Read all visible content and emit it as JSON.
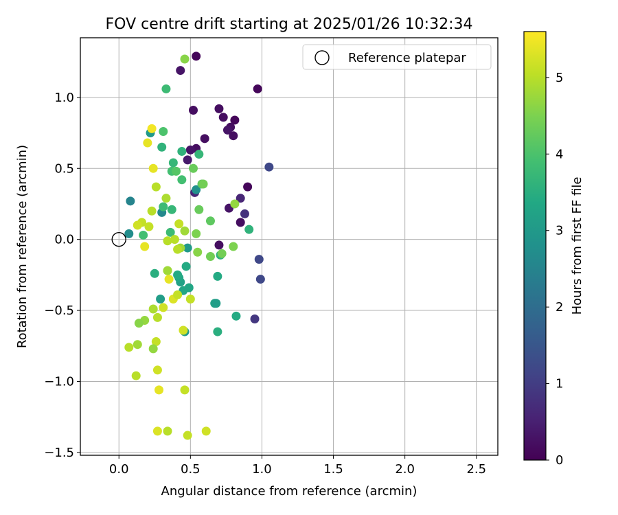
{
  "chart_data": {
    "type": "scatter",
    "title": "FOV centre drift starting at 2025/01/26 10:32:34",
    "xlabel": "Angular distance from reference (arcmin)",
    "ylabel": "Rotation from reference (arcmin)",
    "xlim": [
      -0.27,
      2.65
    ],
    "ylim": [
      -1.52,
      1.42
    ],
    "xticks": [
      0.0,
      0.5,
      1.0,
      1.5,
      2.0,
      2.5
    ],
    "xtick_labels": [
      "0.0",
      "0.5",
      "1.0",
      "1.5",
      "2.0",
      "2.5"
    ],
    "yticks": [
      -1.5,
      -1.0,
      -0.5,
      0.0,
      0.5,
      1.0
    ],
    "ytick_labels": [
      "−1.5",
      "−1.0",
      "−0.5",
      "0.0",
      "0.5",
      "1.0"
    ],
    "grid": true,
    "legend": {
      "placement": "top-right",
      "label": "Reference platepar"
    },
    "reference_point": {
      "x": 0.0,
      "y": 0.0
    },
    "colorbar": {
      "label": "Hours from first FF file",
      "colormap": "viridis",
      "range": [
        0,
        5.6
      ],
      "ticks": [
        0,
        1,
        2,
        3,
        4,
        5
      ],
      "tick_labels": [
        "0",
        "1",
        "2",
        "3",
        "4",
        "5"
      ]
    },
    "points": [
      {
        "x": 0.54,
        "y": 1.29,
        "h": 0.1
      },
      {
        "x": 0.43,
        "y": 1.19,
        "h": 0.3
      },
      {
        "x": 0.97,
        "y": 1.06,
        "h": 0.1
      },
      {
        "x": 0.52,
        "y": 0.91,
        "h": 0.2
      },
      {
        "x": 0.7,
        "y": 0.92,
        "h": 0.2
      },
      {
        "x": 0.73,
        "y": 0.86,
        "h": 0.2
      },
      {
        "x": 0.81,
        "y": 0.84,
        "h": 0.1
      },
      {
        "x": 0.78,
        "y": 0.79,
        "h": 0.2
      },
      {
        "x": 0.76,
        "y": 0.77,
        "h": 0.3
      },
      {
        "x": 0.8,
        "y": 0.73,
        "h": 0.2
      },
      {
        "x": 0.6,
        "y": 0.71,
        "h": 0.2
      },
      {
        "x": 0.54,
        "y": 0.64,
        "h": 0.2
      },
      {
        "x": 0.5,
        "y": 0.63,
        "h": 0.3
      },
      {
        "x": 0.48,
        "y": 0.56,
        "h": 0.4
      },
      {
        "x": 1.05,
        "y": 0.51,
        "h": 1.2
      },
      {
        "x": 0.9,
        "y": 0.37,
        "h": 0.1
      },
      {
        "x": 0.53,
        "y": 0.33,
        "h": 0.6
      },
      {
        "x": 0.85,
        "y": 0.29,
        "h": 0.6
      },
      {
        "x": 0.77,
        "y": 0.22,
        "h": 0.3
      },
      {
        "x": 0.88,
        "y": 0.18,
        "h": 0.8
      },
      {
        "x": 0.85,
        "y": 0.12,
        "h": 0.2
      },
      {
        "x": 0.7,
        "y": -0.04,
        "h": 0.2
      },
      {
        "x": 0.98,
        "y": -0.14,
        "h": 1.2
      },
      {
        "x": 0.99,
        "y": -0.28,
        "h": 1.2
      },
      {
        "x": 0.95,
        "y": -0.56,
        "h": 0.9
      },
      {
        "x": 0.08,
        "y": 0.27,
        "h": 2.5
      },
      {
        "x": 0.07,
        "y": 0.04,
        "h": 2.7
      },
      {
        "x": 0.3,
        "y": 0.19,
        "h": 2.6
      },
      {
        "x": 0.54,
        "y": 0.35,
        "h": 2.8
      },
      {
        "x": 0.22,
        "y": 0.75,
        "h": 3.0
      },
      {
        "x": 0.48,
        "y": -0.06,
        "h": 3.0
      },
      {
        "x": 0.46,
        "y": -0.65,
        "h": 3.0
      },
      {
        "x": 0.67,
        "y": -0.45,
        "h": 3.2
      },
      {
        "x": 0.68,
        "y": -0.45,
        "h": 3.1
      },
      {
        "x": 0.29,
        "y": -0.42,
        "h": 3.1
      },
      {
        "x": 0.45,
        "y": -0.36,
        "h": 3.3
      },
      {
        "x": 0.49,
        "y": -0.34,
        "h": 3.3
      },
      {
        "x": 0.43,
        "y": -0.3,
        "h": 3.2
      },
      {
        "x": 0.42,
        "y": -0.27,
        "h": 3.3
      },
      {
        "x": 0.41,
        "y": -0.25,
        "h": 3.4
      },
      {
        "x": 0.47,
        "y": -0.19,
        "h": 3.4
      },
      {
        "x": 0.69,
        "y": -0.26,
        "h": 3.4
      },
      {
        "x": 0.82,
        "y": -0.54,
        "h": 3.4
      },
      {
        "x": 0.69,
        "y": -0.65,
        "h": 3.5
      },
      {
        "x": 0.25,
        "y": -0.24,
        "h": 3.5
      },
      {
        "x": 0.71,
        "y": -0.11,
        "h": 3.6
      },
      {
        "x": 0.91,
        "y": 0.07,
        "h": 3.6
      },
      {
        "x": 0.3,
        "y": 0.65,
        "h": 3.6
      },
      {
        "x": 0.44,
        "y": 0.62,
        "h": 3.6
      },
      {
        "x": 0.56,
        "y": 0.6,
        "h": 3.7
      },
      {
        "x": 0.38,
        "y": 0.54,
        "h": 3.7
      },
      {
        "x": 0.37,
        "y": 0.48,
        "h": 3.9
      },
      {
        "x": 0.44,
        "y": 0.42,
        "h": 3.9
      },
      {
        "x": 0.31,
        "y": 0.23,
        "h": 3.8
      },
      {
        "x": 0.37,
        "y": 0.21,
        "h": 3.7
      },
      {
        "x": 0.17,
        "y": 0.03,
        "h": 3.9
      },
      {
        "x": 0.36,
        "y": 0.05,
        "h": 3.8
      },
      {
        "x": 0.33,
        "y": 1.06,
        "h": 3.8
      },
      {
        "x": 0.31,
        "y": 0.76,
        "h": 4.0
      },
      {
        "x": 0.4,
        "y": 0.48,
        "h": 4.1
      },
      {
        "x": 0.52,
        "y": 0.5,
        "h": 4.3
      },
      {
        "x": 0.58,
        "y": 0.39,
        "h": 4.2
      },
      {
        "x": 0.59,
        "y": 0.39,
        "h": 4.4
      },
      {
        "x": 0.56,
        "y": 0.21,
        "h": 4.3
      },
      {
        "x": 0.64,
        "y": 0.13,
        "h": 4.2
      },
      {
        "x": 0.54,
        "y": 0.04,
        "h": 4.5
      },
      {
        "x": 0.64,
        "y": -0.12,
        "h": 4.4
      },
      {
        "x": 0.72,
        "y": -0.1,
        "h": 4.4
      },
      {
        "x": 0.8,
        "y": -0.05,
        "h": 4.5
      },
      {
        "x": 0.55,
        "y": -0.09,
        "h": 4.6
      },
      {
        "x": 0.81,
        "y": 0.25,
        "h": 4.7
      },
      {
        "x": 0.46,
        "y": 1.27,
        "h": 4.6
      },
      {
        "x": 0.34,
        "y": -0.22,
        "h": 4.4
      },
      {
        "x": 0.34,
        "y": -0.22,
        "h": 4.8
      },
      {
        "x": 0.46,
        "y": 0.06,
        "h": 4.8
      },
      {
        "x": 0.43,
        "y": -0.06,
        "h": 4.8
      },
      {
        "x": 0.41,
        "y": -0.07,
        "h": 5.0
      },
      {
        "x": 0.39,
        "y": 0.0,
        "h": 5.0
      },
      {
        "x": 0.34,
        "y": -0.01,
        "h": 5.0
      },
      {
        "x": 0.33,
        "y": 0.29,
        "h": 4.9
      },
      {
        "x": 0.26,
        "y": 0.37,
        "h": 5.0
      },
      {
        "x": 0.23,
        "y": 0.2,
        "h": 5.0
      },
      {
        "x": 0.21,
        "y": 0.09,
        "h": 5.1
      },
      {
        "x": 0.16,
        "y": 0.12,
        "h": 5.1
      },
      {
        "x": 0.13,
        "y": 0.1,
        "h": 5.2
      },
      {
        "x": 0.42,
        "y": 0.11,
        "h": 5.1
      },
      {
        "x": 0.18,
        "y": -0.57,
        "h": 4.7
      },
      {
        "x": 0.14,
        "y": -0.59,
        "h": 4.6
      },
      {
        "x": 0.24,
        "y": -0.49,
        "h": 4.9
      },
      {
        "x": 0.27,
        "y": -0.55,
        "h": 5.0
      },
      {
        "x": 0.31,
        "y": -0.48,
        "h": 5.2
      },
      {
        "x": 0.38,
        "y": -0.42,
        "h": 5.3
      },
      {
        "x": 0.41,
        "y": -0.39,
        "h": 5.1
      },
      {
        "x": 0.5,
        "y": -0.42,
        "h": 5.1
      },
      {
        "x": 0.45,
        "y": -0.64,
        "h": 5.2
      },
      {
        "x": 0.26,
        "y": -0.72,
        "h": 5.1
      },
      {
        "x": 0.13,
        "y": -0.74,
        "h": 4.8
      },
      {
        "x": 0.07,
        "y": -0.76,
        "h": 5.0
      },
      {
        "x": 0.24,
        "y": -0.77,
        "h": 4.7
      },
      {
        "x": 0.12,
        "y": -0.96,
        "h": 5.0
      },
      {
        "x": 0.27,
        "y": -0.92,
        "h": 5.2
      },
      {
        "x": 0.28,
        "y": -1.06,
        "h": 5.4
      },
      {
        "x": 0.46,
        "y": -1.06,
        "h": 5.1
      },
      {
        "x": 0.27,
        "y": -1.35,
        "h": 5.3
      },
      {
        "x": 0.34,
        "y": -1.35,
        "h": 5.0
      },
      {
        "x": 0.48,
        "y": -1.38,
        "h": 5.1
      },
      {
        "x": 0.61,
        "y": -1.35,
        "h": 5.2
      },
      {
        "x": 0.24,
        "y": 0.5,
        "h": 5.4
      },
      {
        "x": 0.2,
        "y": 0.68,
        "h": 5.4
      },
      {
        "x": 0.23,
        "y": 0.78,
        "h": 5.5
      },
      {
        "x": 0.18,
        "y": -0.05,
        "h": 5.4
      },
      {
        "x": 0.35,
        "y": -0.28,
        "h": 5.4
      }
    ]
  }
}
